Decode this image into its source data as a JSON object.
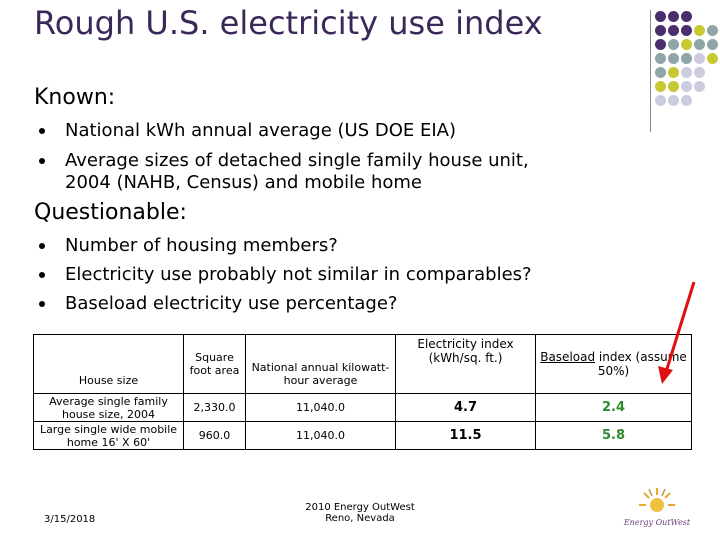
{
  "title": "Rough U.S. electricity use index",
  "known": {
    "heading": "Known:",
    "bullets": [
      "National kWh annual average (US DOE EIA)",
      "Average sizes of detached single family house unit,",
      "2004 (NAHB, Census) and mobile home"
    ]
  },
  "questionable": {
    "heading": "Questionable:",
    "bullets": [
      "Number of housing members?",
      "Electricity use probably not similar in comparables?",
      "Baseload electricity use percentage?"
    ]
  },
  "table": {
    "headers": {
      "house_size": "House size",
      "square_foot_area": "Square foot area",
      "kwh_average": "National annual kilowatt-hour average",
      "electricity_index": "Electricity index (kWh/sq. ft.)",
      "baseload_word": "Baseload",
      "baseload_rest": " index (assume 50%)"
    },
    "rows": [
      {
        "house_size": "Average single family house size, 2004",
        "sqft": "2,330.0",
        "kwh": "11,040.0",
        "index": "4.7",
        "baseload": "2.4"
      },
      {
        "house_size": "Large single wide mobile home 16' X 60'",
        "sqft": "960.0",
        "kwh": "11,040.0",
        "index": "11.5",
        "baseload": "5.8"
      }
    ]
  },
  "footer": {
    "date": "3/15/2018",
    "center_line1": "2010 Energy OutWest",
    "center_line2": "Reno, Nevada",
    "logo_text": "Energy OutWest"
  },
  "colors": {
    "title": "#3b2858",
    "purple_dot": "#4b2e6b",
    "teal_dot": "#8fa5a8",
    "yellow_dot": "#c8c832",
    "lavender_dot": "#cccce0",
    "arrow": "#e01010",
    "baseload_value": "#2e8b2e"
  }
}
